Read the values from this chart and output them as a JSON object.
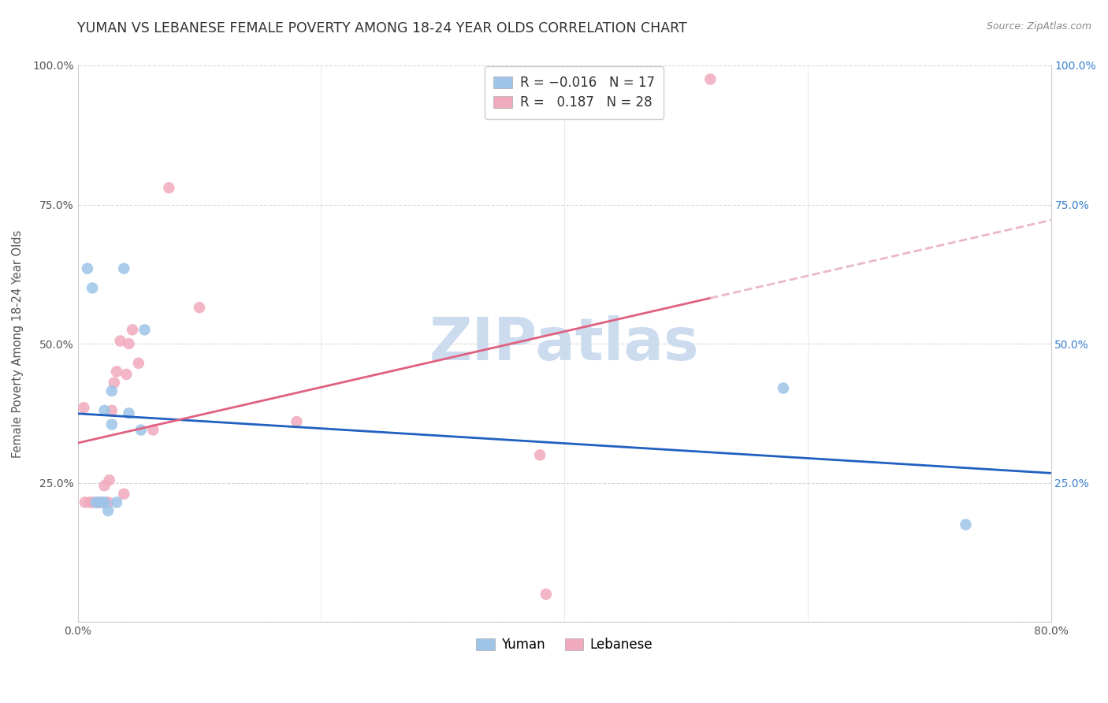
{
  "title": "YUMAN VS LEBANESE FEMALE POVERTY AMONG 18-24 YEAR OLDS CORRELATION CHART",
  "source": "Source: ZipAtlas.com",
  "xlabel": "",
  "ylabel": "Female Poverty Among 18-24 Year Olds",
  "xlim": [
    0.0,
    0.8
  ],
  "ylim": [
    0.0,
    1.0
  ],
  "xticks": [
    0.0,
    0.2,
    0.4,
    0.6,
    0.8
  ],
  "xticklabels": [
    "0.0%",
    "",
    "",
    "",
    "80.0%"
  ],
  "yticks": [
    0.0,
    0.25,
    0.5,
    0.75,
    1.0
  ],
  "background_color": "#ffffff",
  "grid_color": "#d8d8d8",
  "yuman_color": "#9ec4e8",
  "lebanese_color": "#f0aabe",
  "yuman_line_color": "#2060c0",
  "lebanese_line_color": "#e06080",
  "lebanese_dash_color": "#ebb8c8",
  "r_yuman": -0.016,
  "n_yuman": 17,
  "r_lebanese": 0.187,
  "n_lebanese": 28,
  "yuman_scatter_x": [
    0.008,
    0.012,
    0.015,
    0.016,
    0.02,
    0.022,
    0.022,
    0.025,
    0.028,
    0.028,
    0.032,
    0.038,
    0.042,
    0.052,
    0.055,
    0.58,
    0.73
  ],
  "yuman_scatter_y": [
    0.635,
    0.6,
    0.215,
    0.215,
    0.215,
    0.215,
    0.38,
    0.2,
    0.355,
    0.415,
    0.215,
    0.635,
    0.375,
    0.345,
    0.525,
    0.42,
    0.175
  ],
  "lebanese_scatter_x": [
    0.005,
    0.006,
    0.01,
    0.012,
    0.015,
    0.016,
    0.018,
    0.02,
    0.022,
    0.022,
    0.025,
    0.026,
    0.028,
    0.03,
    0.032,
    0.035,
    0.038,
    0.04,
    0.042,
    0.045,
    0.05,
    0.062,
    0.075,
    0.1,
    0.18,
    0.38,
    0.385,
    0.52
  ],
  "lebanese_scatter_y": [
    0.385,
    0.215,
    0.215,
    0.215,
    0.215,
    0.215,
    0.215,
    0.215,
    0.215,
    0.245,
    0.215,
    0.255,
    0.38,
    0.43,
    0.45,
    0.505,
    0.23,
    0.445,
    0.5,
    0.525,
    0.465,
    0.345,
    0.78,
    0.565,
    0.36,
    0.3,
    0.05,
    0.975
  ],
  "marker_size": 110,
  "title_fontsize": 12.5,
  "axis_label_fontsize": 10.5,
  "tick_fontsize": 10,
  "legend_fontsize": 12,
  "watermark_text": "ZIPatlas",
  "watermark_color": "#ccdcee",
  "watermark_fontsize": 54
}
